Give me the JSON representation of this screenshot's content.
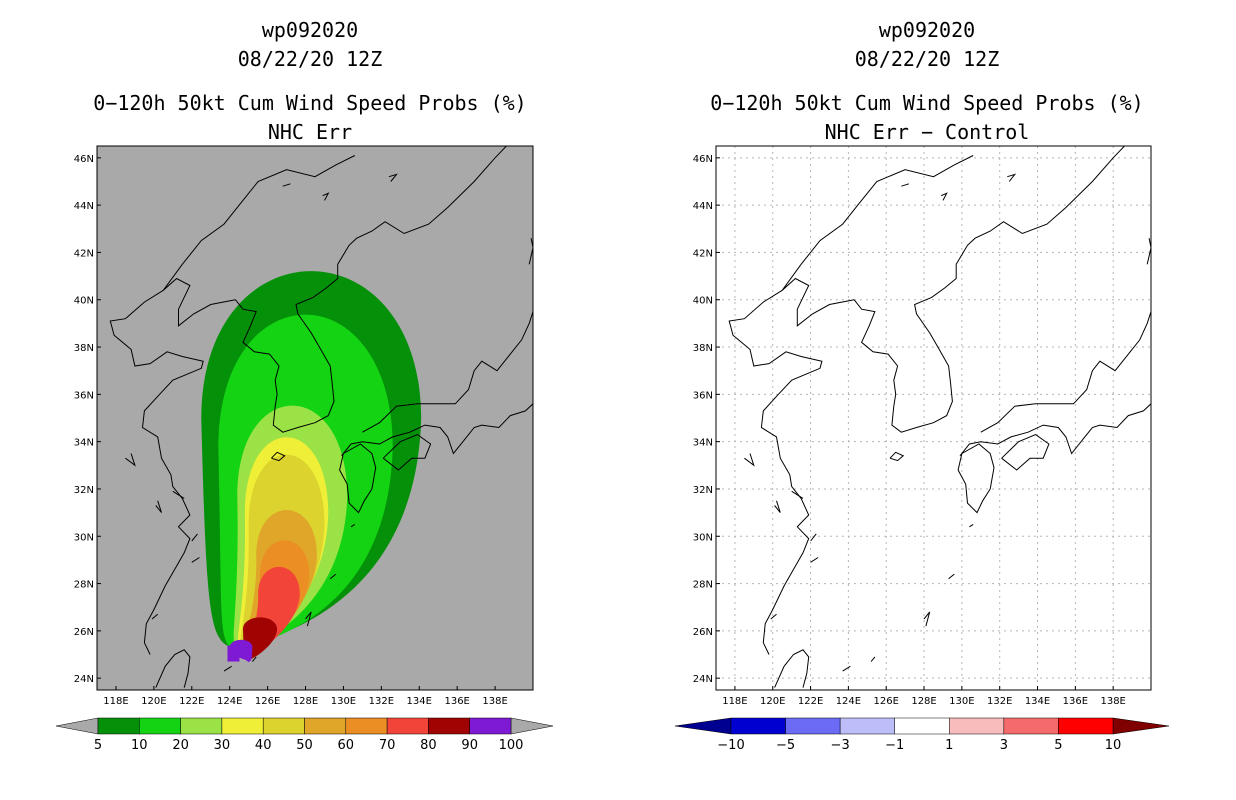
{
  "left": {
    "storm_id": "wp092020",
    "date": "08/22/20 12Z",
    "product": "0−120h 50kt Cum Wind Speed Probs (%)",
    "subtitle": "NHC Err",
    "background": "#a9a9a9",
    "colorbar": {
      "labels": [
        "5",
        "10",
        "20",
        "30",
        "40",
        "50",
        "60",
        "70",
        "80",
        "90",
        "100"
      ],
      "colors": [
        "#05900a",
        "#13d313",
        "#9be246",
        "#f0ef37",
        "#dcd32e",
        "#dfa629",
        "#eb8e23",
        "#f24438",
        "#a10202",
        "#7e1ad4"
      ],
      "under_color": "#a9a9a9",
      "over_color": "#a9a9a9"
    }
  },
  "right": {
    "storm_id": "wp092020",
    "date": "08/22/20 12Z",
    "product": "0−120h 50kt Cum Wind Speed Probs (%)",
    "subtitle": "NHC Err − Control",
    "background": "#ffffff",
    "colorbar": {
      "labels": [
        "−10",
        "−5",
        "−3",
        "−1",
        "1",
        "3",
        "5",
        "10"
      ],
      "colors": [
        "#0000d0",
        "#6b6bf5",
        "#bdbdf9",
        "#ffffff",
        "#f9bcbc",
        "#f56a6a",
        "#ff0000"
      ],
      "under_color": "#000090",
      "over_color": "#800000"
    }
  },
  "axes": {
    "lon_labels": [
      "118E",
      "120E",
      "122E",
      "124E",
      "126E",
      "128E",
      "130E",
      "132E",
      "134E",
      "136E",
      "138E"
    ],
    "lat_labels": [
      "24N",
      "26N",
      "28N",
      "30N",
      "32N",
      "34N",
      "36N",
      "38N",
      "40N",
      "42N",
      "44N",
      "46N"
    ],
    "lon_range": [
      117,
      140
    ],
    "lat_range": [
      23.5,
      46.5
    ]
  },
  "probability_field": {
    "peak_lon": 124.2,
    "peak_lat": 25.0,
    "peak_percent": 100,
    "levels": [
      {
        "min": 5,
        "center": [
          128.3,
          33.0
        ],
        "half_width_deg": [
          5.8,
          9.8
        ]
      },
      {
        "min": 10,
        "center": [
          128.0,
          32.0
        ],
        "half_width_deg": [
          4.6,
          8.8
        ]
      },
      {
        "min": 20,
        "center": [
          127.3,
          30.5
        ],
        "half_width_deg": [
          2.9,
          6.0
        ]
      },
      {
        "min": 30,
        "center": [
          127.0,
          30.0
        ],
        "half_width_deg": [
          2.2,
          5.0
        ]
      },
      {
        "min": 40,
        "center": [
          127.0,
          29.6
        ],
        "half_width_deg": [
          2.0,
          4.6
        ]
      },
      {
        "min": 50,
        "center": [
          127.0,
          28.6
        ],
        "half_width_deg": [
          1.6,
          3.0
        ]
      },
      {
        "min": 60,
        "center": [
          126.9,
          27.9
        ],
        "half_width_deg": [
          1.3,
          2.3
        ]
      },
      {
        "min": 70,
        "center": [
          126.6,
          27.2
        ],
        "half_width_deg": [
          1.1,
          1.8
        ]
      },
      {
        "min": 80,
        "center": [
          125.6,
          25.9
        ],
        "half_width_deg": [
          0.9,
          0.8
        ]
      },
      {
        "min": 90,
        "center": [
          124.6,
          25.2
        ],
        "half_width_deg": [
          0.6,
          0.5
        ]
      }
    ]
  }
}
